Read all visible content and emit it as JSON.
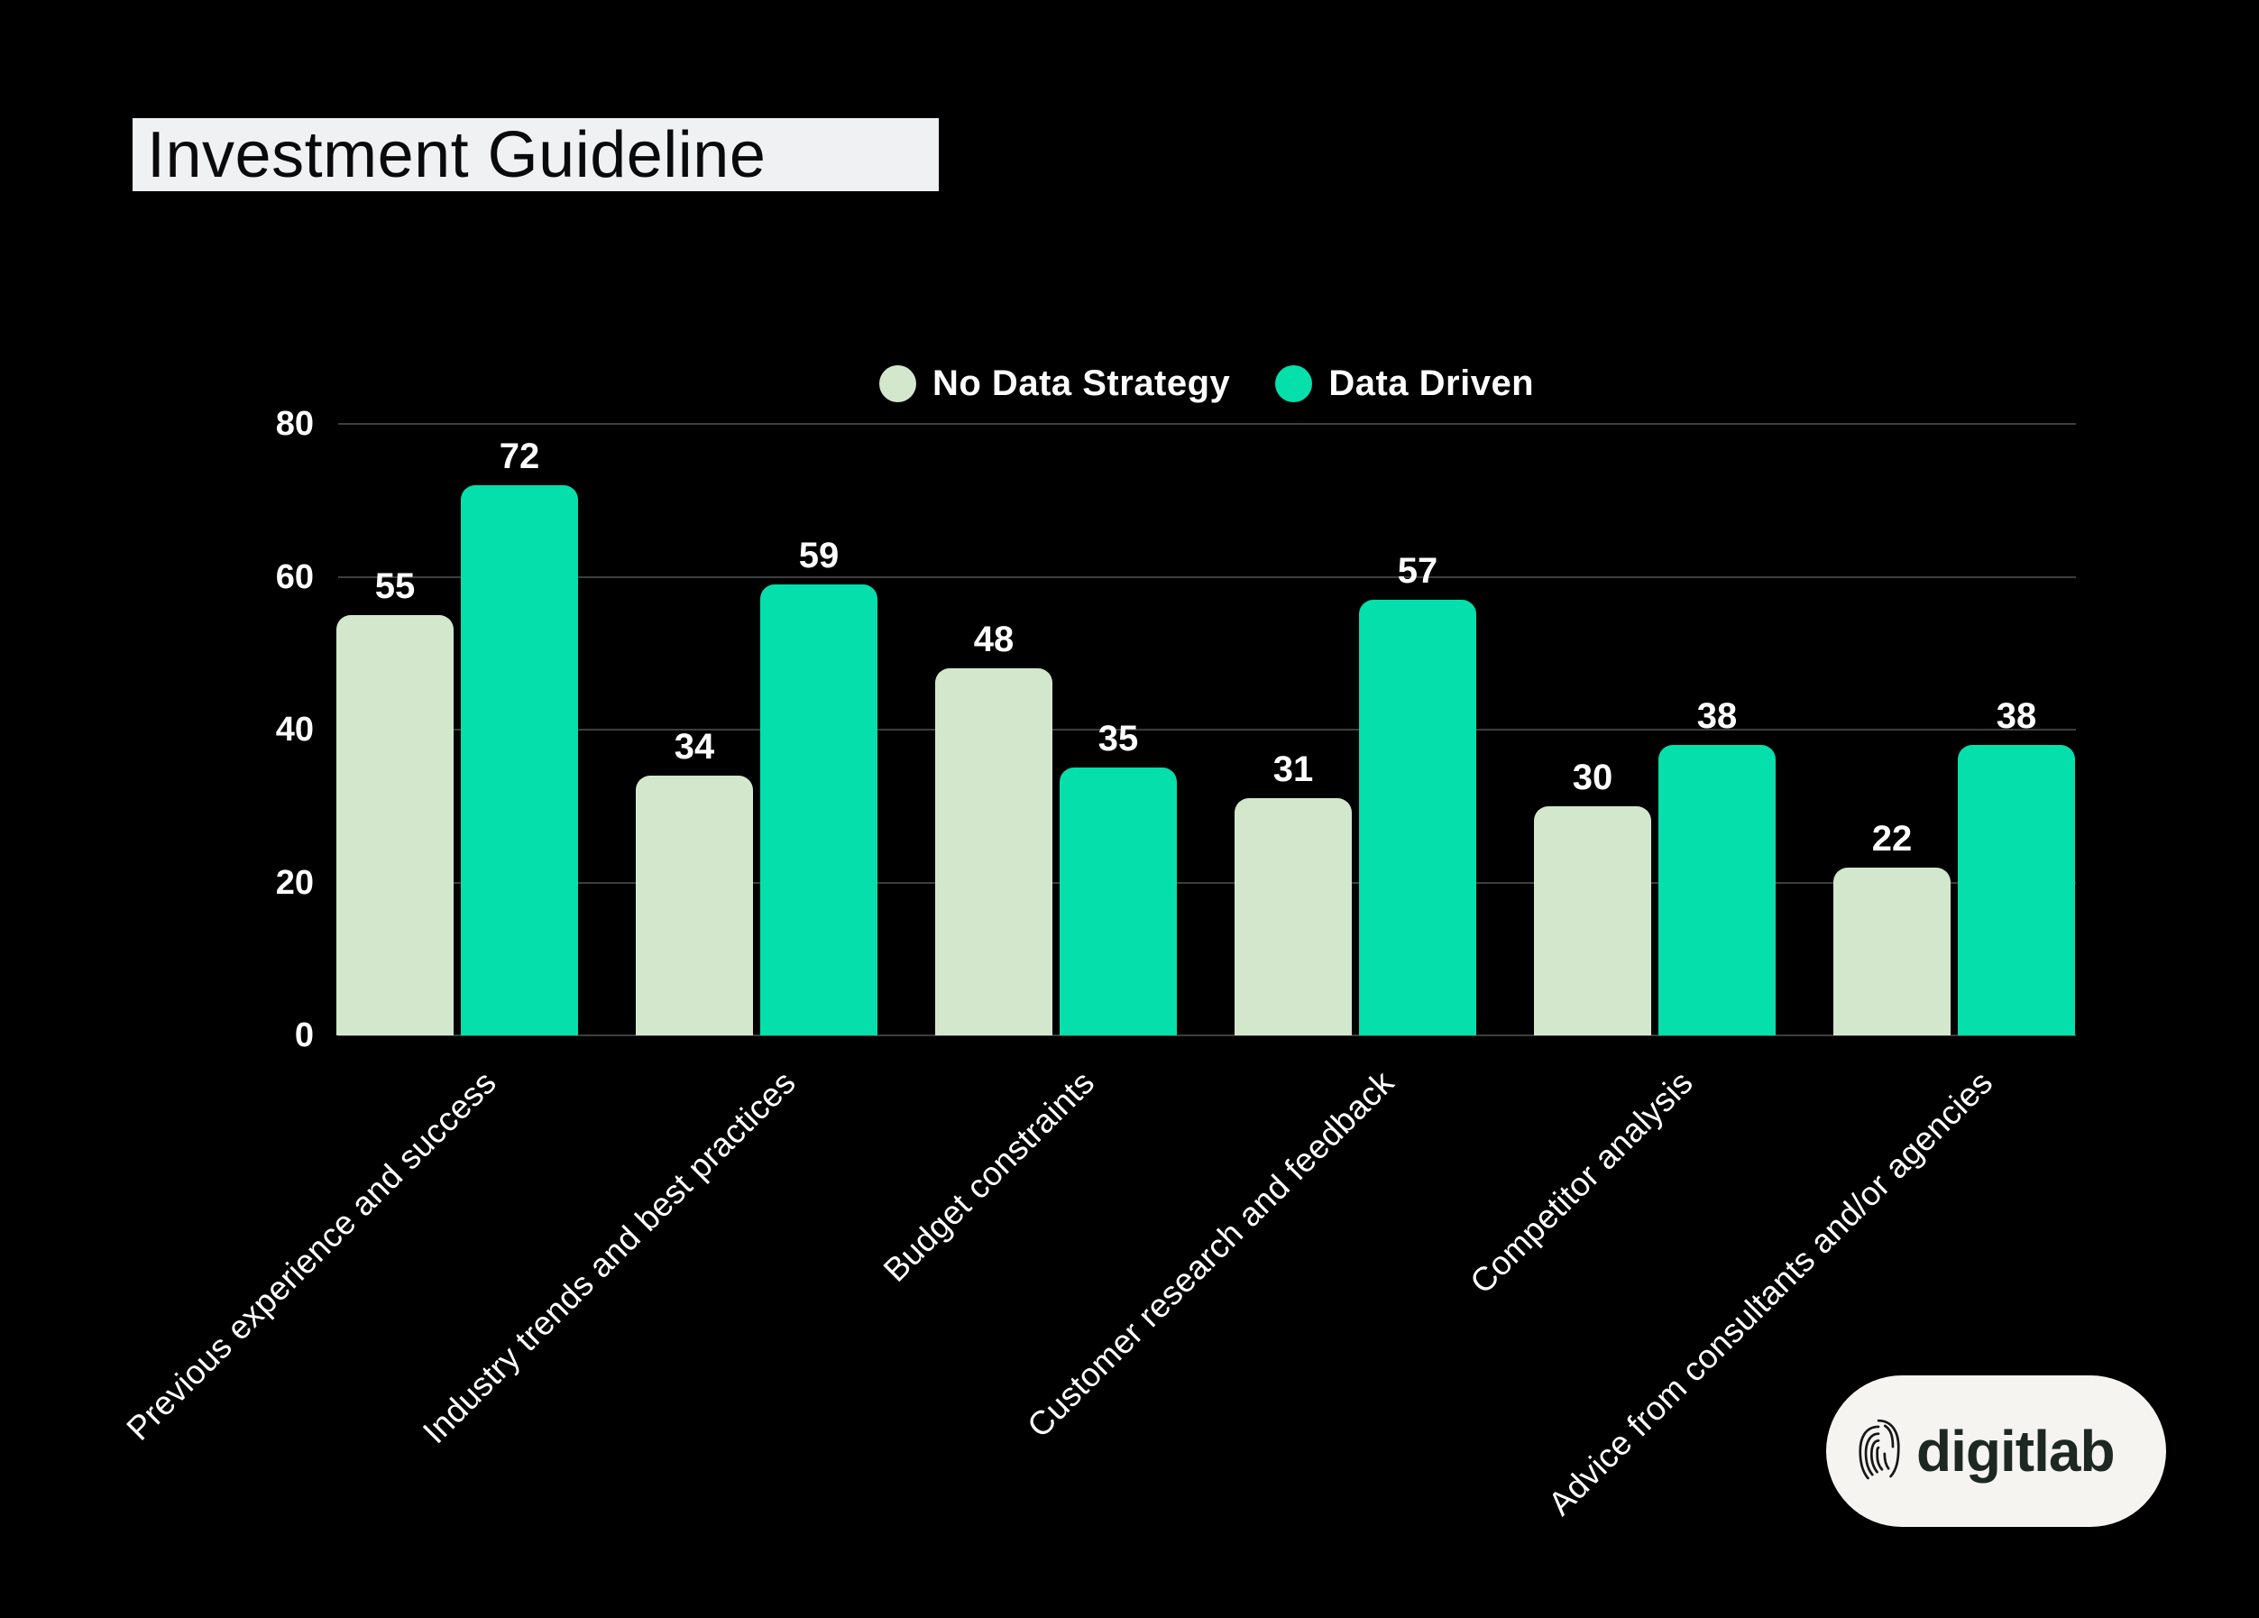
{
  "title": "Investment Guideline",
  "colors": {
    "background": "#000000",
    "title_bg": "#f0f1f3",
    "title_text": "#0a0a0b",
    "gridline": "#3e3e3e",
    "axis_text": "#ffffff",
    "no_data_strategy": "#d3e7cd",
    "data_driven": "#05dfab",
    "logo_bg": "#f5f4f0",
    "logo_text": "#1d2823"
  },
  "legend": {
    "items": [
      {
        "label": "No Data Strategy",
        "color": "#d3e7cd"
      },
      {
        "label": "Data Driven",
        "color": "#05dfab"
      }
    ]
  },
  "chart_data": {
    "type": "bar",
    "title": "Investment Guideline",
    "categories": [
      "Previous experience and success",
      "Industry trends and best practices",
      "Budget constraints",
      "Customer research and feedback",
      "Competitor analysis",
      "Advice from consultants and/or agencies"
    ],
    "series": [
      {
        "name": "No Data Strategy",
        "color": "#d3e7cd",
        "values": [
          55,
          34,
          48,
          31,
          30,
          22
        ]
      },
      {
        "name": "Data Driven",
        "color": "#05dfab",
        "values": [
          72,
          59,
          35,
          57,
          38,
          38
        ]
      }
    ],
    "xlabel": "",
    "ylabel": "",
    "ylim": [
      0,
      80
    ],
    "yticks": [
      0,
      20,
      40,
      60,
      80
    ],
    "grid": true,
    "grid_color": "#3e3e3e",
    "bar_style": "rounded-top",
    "value_labels": true,
    "legend_position": "top-center",
    "x_tick_rotation": 45
  },
  "logo": {
    "text": "digitlab",
    "icon": "fingerprint-icon"
  }
}
